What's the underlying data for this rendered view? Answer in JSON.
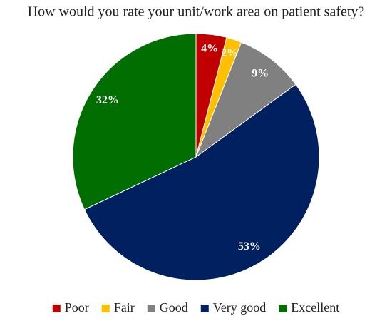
{
  "chart_data": {
    "type": "pie",
    "title": "How would you rate your unit/work area on patient safety?",
    "categories": [
      "Poor",
      "Fair",
      "Good",
      "Very good",
      "Excellent"
    ],
    "values": [
      4,
      2,
      9,
      53,
      32
    ],
    "value_labels": [
      "4%",
      "2%",
      "9%",
      "53%",
      "32%"
    ],
    "colors": [
      "#c00000",
      "#ffc000",
      "#808080",
      "#002060",
      "#006e00"
    ],
    "legend": "bottom"
  }
}
